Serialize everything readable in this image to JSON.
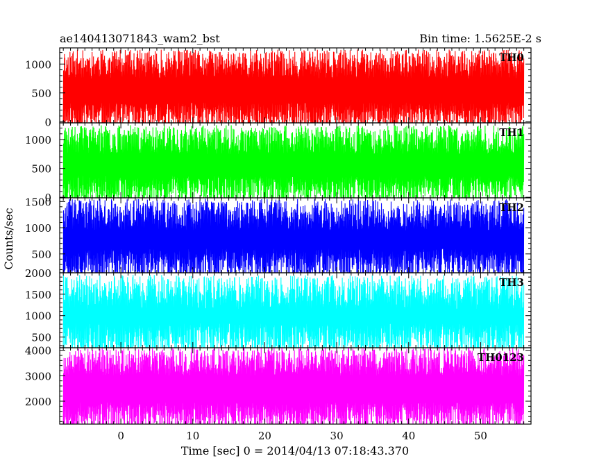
{
  "header": {
    "title": "ae140413071843_wam2_bst",
    "bin_time": "Bin time: 1.5625E-2 s"
  },
  "chart_data": {
    "type": "line",
    "title": "ae140413071843_wam2_bst",
    "xlabel": "Time [sec] 0 = 2014/04/13 07:18:43.370",
    "ylabel": "Counts/sec",
    "xlim": [
      -8.5,
      57
    ],
    "x_ticks": [
      0,
      10,
      20,
      30,
      40,
      50
    ],
    "x_data_range": [
      -8,
      56
    ],
    "n_points": 2000,
    "panels": [
      {
        "name": "TH0",
        "color": "#ff0000",
        "ylim": [
          -20,
          1280
        ],
        "y_ticks": [
          0,
          500,
          1000
        ],
        "band": [
          80,
          1000
        ],
        "fluct": 250,
        "seed": 11
      },
      {
        "name": "TH1",
        "color": "#00ff00",
        "ylim": [
          -10,
          1290
        ],
        "y_ticks": [
          0,
          500,
          1000
        ],
        "band": [
          120,
          1000
        ],
        "fluct": 250,
        "seed": 23
      },
      {
        "name": "TH2",
        "color": "#0000ff",
        "ylim": [
          140,
          1570
        ],
        "y_ticks": [
          500,
          1000,
          1500
        ],
        "band": [
          300,
          1250
        ],
        "fluct": 300,
        "seed": 37
      },
      {
        "name": "TH3",
        "color": "#00ffff",
        "ylim": [
          250,
          2000
        ],
        "y_ticks": [
          500,
          1000,
          1500,
          2000
        ],
        "band": [
          420,
          1550
        ],
        "fluct": 400,
        "seed": 41
      },
      {
        "name": "TH0123",
        "color": "#ff00ff",
        "ylim": [
          1100,
          4100
        ],
        "y_ticks": [
          2000,
          3000,
          4000
        ],
        "band": [
          1400,
          3550
        ],
        "fluct": 550,
        "seed": 53
      }
    ]
  }
}
